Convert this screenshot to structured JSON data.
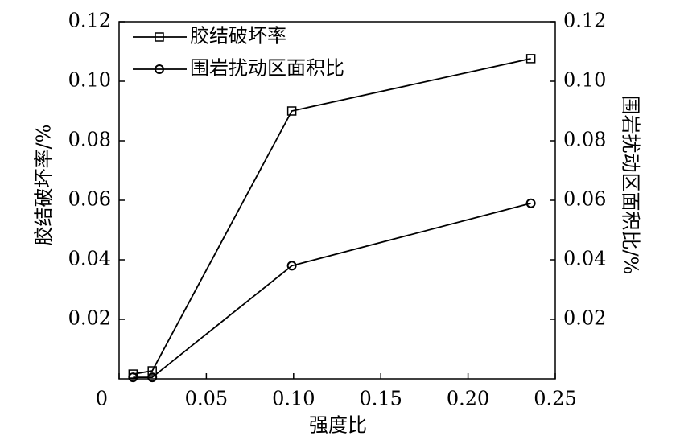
{
  "chart_data": {
    "type": "line",
    "xlabel": "强度比",
    "ylabel": "胶结破坏率/%",
    "y2label": "围岩扰动区面积比/%",
    "xlim": [
      0,
      0.25
    ],
    "xticks": [
      0,
      0.05,
      {
        "value": 0.1,
        "label": "0.10"
      },
      0.15,
      {
        "value": 0.2,
        "label": "0.20"
      },
      0.25
    ],
    "ylim": [
      0,
      0.12
    ],
    "yticks": [
      0.02,
      0.04,
      0.06,
      0.08,
      {
        "value": 0.1,
        "label": "0.10"
      },
      0.12
    ],
    "y2lim": [
      0,
      0.12
    ],
    "y2ticks": [
      0.02,
      0.04,
      0.06,
      0.08,
      {
        "value": 0.1,
        "label": "0.10"
      },
      0.12
    ],
    "legend": "upper left",
    "series": [
      {
        "name": "胶结破坏率",
        "color": "#000000",
        "marker": "square",
        "x": [
          0.008,
          0.019,
          0.099,
          0.236
        ],
        "values": [
          0.0016,
          0.0027,
          0.09,
          0.1076
        ]
      },
      {
        "name": "围岩扰动区面积比",
        "color": "#000000",
        "marker": "circle",
        "axis": "y2",
        "x": [
          0.008,
          0.019,
          0.099,
          0.236
        ],
        "values": [
          0.0005,
          0.0005,
          0.038,
          0.059
        ]
      }
    ]
  }
}
